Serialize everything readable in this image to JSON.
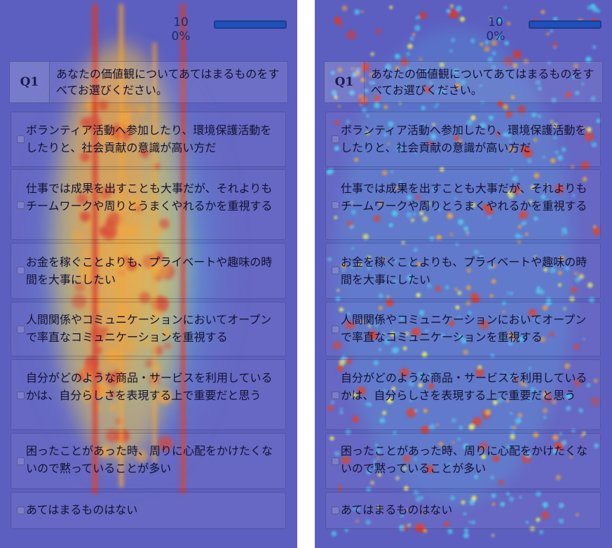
{
  "panels": [
    {
      "id": "attention-heatmap",
      "style": "dense"
    },
    {
      "id": "click-heatmap",
      "style": "sparse"
    }
  ],
  "progress": {
    "count": "10",
    "percent": "0%",
    "value": 1.0
  },
  "question": {
    "number": "Q1",
    "text": "あなたの価値観についてあてはまるものをすべてお選びください。"
  },
  "options": [
    {
      "label": "ボランティア活動へ参加したり、環境保護活動をしたりと、社会貢献の意識が高い方だ",
      "checked": false
    },
    {
      "label": "仕事では成果を出すことも大事だが、それよりもチームワークや周りとうまくやれるかを重視する",
      "checked": false
    },
    {
      "label": "お金を稼ぐことよりも、プライベートや趣味の時間を大事にしたい",
      "checked": false
    },
    {
      "label": "人間関係やコミュニケーションにおいてオープンで率直なコミュニケーションを重視する",
      "checked": false
    },
    {
      "label": "自分がどのような商品・サービスを利用しているかは、自分らしさを表現する上で重要だと思う",
      "checked": false
    },
    {
      "label": "困ったことがあった時、周りに心配をかけたくないので黙っていることが多い",
      "checked": false
    },
    {
      "label": "あてはまるものはない",
      "checked": false
    }
  ],
  "colors": {
    "heat_base": "#5d5fc0",
    "heat_cool": "#48c8f0",
    "heat_mid": "#f0f050",
    "heat_warm": "#f0a030",
    "heat_hot": "#d83a2a",
    "progress_fill": "#1f4fb8"
  }
}
